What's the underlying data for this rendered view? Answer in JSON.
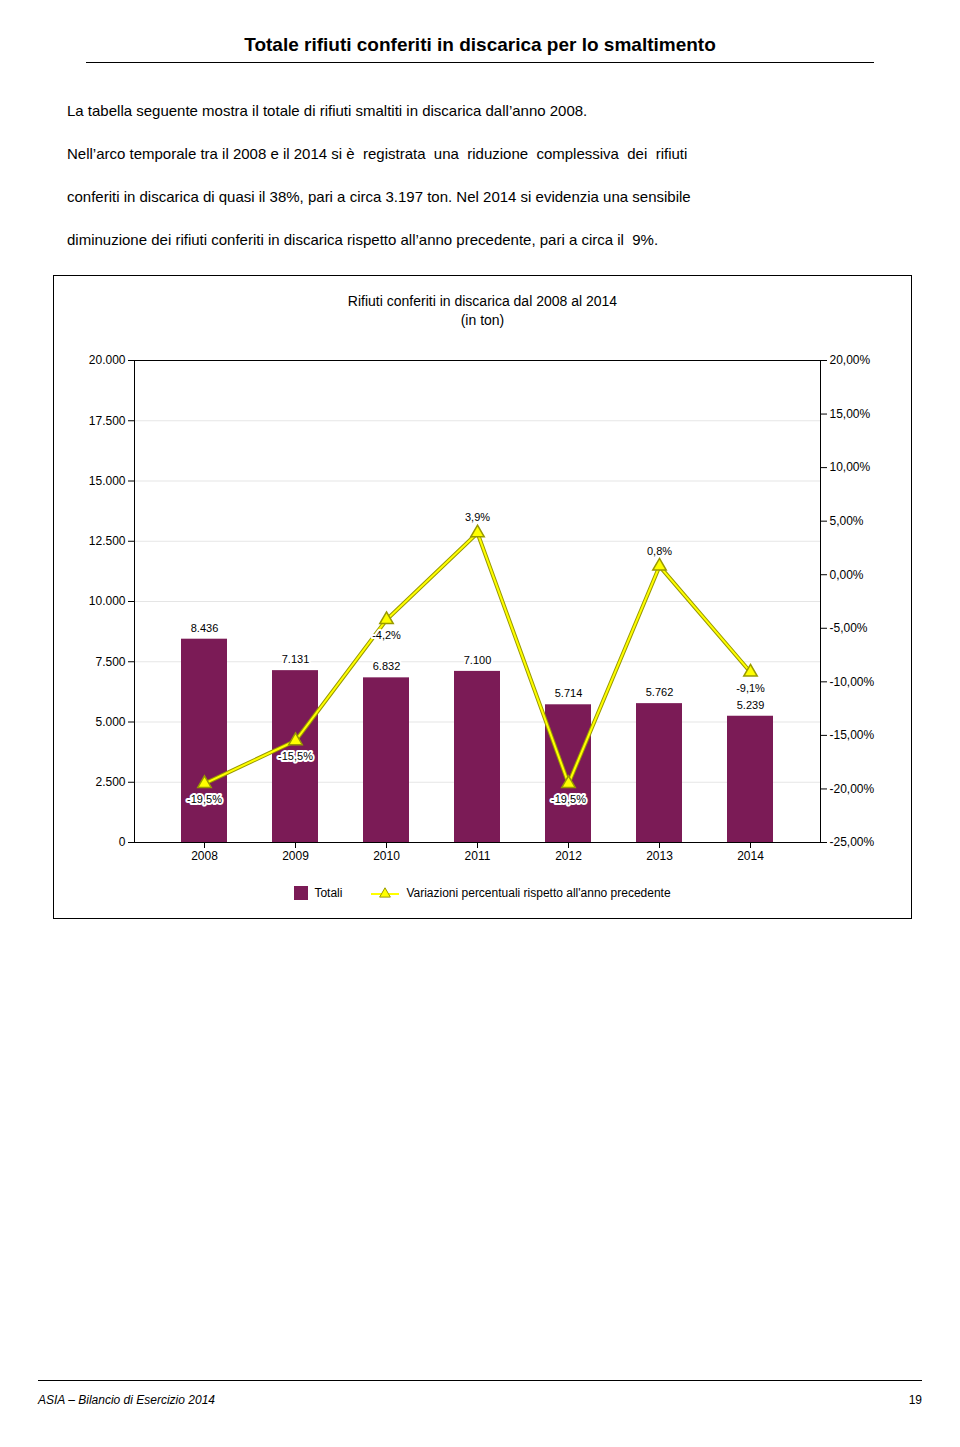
{
  "page_title": "Totale rifiuti conferiti in discarica per lo smaltimento",
  "text": [
    "La tabella seguente mostra il totale di rifiuti smaltiti in discarica dall’anno 2008.",
    "Nell’arco temporale tra il 2008 e il 2014 si è  registrata  una  riduzione  complessiva  dei  rifiuti",
    "conferiti in discarica di quasi il 38%, pari a circa 3.197 ton. Nel 2014 si evidenzia una sensibile",
    "diminuzione dei rifiuti conferiti in discarica rispetto all’anno precedente, pari a circa il  9%."
  ],
  "footer": [
    "ASIA – Bilancio di Esercizio 2014",
    "19"
  ],
  "chart_data": {
    "type": "bar",
    "title": "Rifiuti conferiti in discarica dal 2008 al 2014",
    "subtitle": "(in ton)",
    "categories": [
      "2008",
      "2009",
      "2010",
      "2011",
      "2012",
      "2013",
      "2014"
    ],
    "series": [
      {
        "name": "Totali",
        "type": "bar",
        "color": "#7B1B56",
        "values": [
          8436,
          7131,
          6832,
          7100,
          5714,
          5762,
          5239
        ],
        "value_labels": [
          "8.436",
          "7.131",
          "6.832",
          "7.100",
          "5.714",
          "5.762",
          "5.239"
        ]
      },
      {
        "name": "Variazioni percentuali rispetto all'anno precedente",
        "type": "line",
        "axis": "y2",
        "color": "#FFFF00",
        "marker": "triangle",
        "values": [
          -19.5,
          -15.5,
          -4.2,
          3.9,
          -19.5,
          0.8,
          -9.1
        ],
        "value_labels": [
          "-19,5%",
          "-15,5%",
          "-4,2%",
          "3,9%",
          "-19,5%",
          "0,8%",
          "-9,1%"
        ]
      }
    ],
    "data_labels": true,
    "ylim": [
      0,
      20000
    ],
    "yticks": [
      0,
      {
        "value": 2500,
        "label": "2.500"
      },
      {
        "value": 5000,
        "label": "5.000"
      },
      {
        "value": 7500,
        "label": "7.500"
      },
      {
        "value": 10000,
        "label": "10.000"
      },
      {
        "value": 12500,
        "label": "12.500"
      },
      {
        "value": 15000,
        "label": "15.000"
      },
      {
        "value": 17500,
        "label": "17.500"
      },
      {
        "value": 20000,
        "label": "20.000"
      }
    ],
    "y2lim": [
      -25,
      20
    ],
    "y2ticks": [
      {
        "value": -25,
        "label": "-25,00%"
      },
      {
        "value": -20,
        "label": "-20,00%"
      },
      {
        "value": -15,
        "label": "-15,00%"
      },
      {
        "value": -10,
        "label": "-10,00%"
      },
      {
        "value": -5,
        "label": "-5,00%"
      },
      {
        "value": 0,
        "label": "0,00%"
      },
      {
        "value": 5,
        "label": "5,00%"
      },
      {
        "value": 10,
        "label": "10,00%"
      },
      {
        "value": 15,
        "label": "15,00%"
      },
      {
        "value": 20,
        "label": "20,00%"
      }
    ],
    "grid": true,
    "legend": "bottom"
  }
}
